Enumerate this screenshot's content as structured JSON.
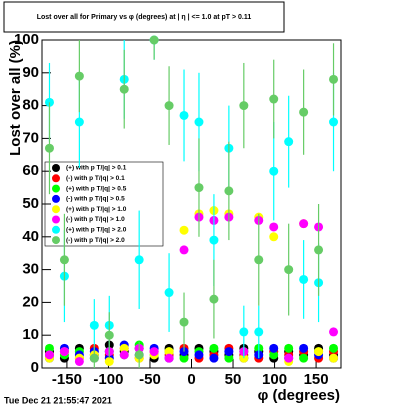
{
  "chart_data": {
    "type": "scatter",
    "title": "Lost over all for Primary vs φ (degrees) at | η | <= 1.0 at pT > 0.11",
    "x_label": "φ (degrees)",
    "y_label": "Lost over all (%)",
    "timestamp": "Tue Dec 21 21:55:47 2021",
    "x": [
      -171,
      -153,
      -135,
      -117,
      -99,
      -81,
      -63,
      -45,
      -27,
      -9,
      9,
      27,
      45,
      63,
      81,
      99,
      117,
      135,
      153,
      171
    ],
    "xlim": [
      -180,
      180
    ],
    "xticks": [
      -150,
      -100,
      -50,
      0,
      50,
      100,
      150
    ],
    "ylim": [
      0,
      100
    ],
    "yticks": [
      0,
      10,
      20,
      30,
      40,
      50,
      60,
      70,
      80,
      90,
      100
    ],
    "series": [
      {
        "name": "(+) with p T/|q| > 0.1",
        "color": "#000000",
        "values": [
          5,
          3,
          6,
          4,
          7,
          5,
          6,
          3,
          6,
          4,
          6,
          5,
          4,
          6,
          5,
          3,
          5,
          4,
          6,
          4
        ]
      },
      {
        "name": "(-) with p T/|q| > 0.1",
        "color": "#ff0000",
        "values": [
          4,
          5,
          3,
          6,
          4,
          6,
          3,
          5,
          4,
          6,
          3,
          4,
          6,
          4,
          3,
          5,
          4,
          5,
          3,
          5
        ]
      },
      {
        "name": "(+) with p T/|q| > 0.5",
        "color": "#00ff00",
        "values": [
          6,
          4,
          5,
          3,
          5,
          4,
          7,
          4,
          5,
          3,
          5,
          6,
          3,
          5,
          6,
          4,
          6,
          3,
          5,
          6
        ]
      },
      {
        "name": "(-) with p T/|q| > 0.5",
        "color": "#0000ff",
        "values": [
          3,
          6,
          4,
          5,
          3,
          7,
          4,
          6,
          3,
          5,
          4,
          3,
          5,
          3,
          4,
          6,
          3,
          6,
          4,
          3
        ]
      },
      {
        "name": "(+) with p T/|q| > 1.0",
        "color": "#ffff00",
        "values": [
          3,
          5,
          3,
          4,
          2,
          6,
          3,
          4,
          5,
          42,
          47,
          48,
          47,
          3,
          46,
          40,
          2,
          44,
          5,
          3
        ]
      },
      {
        "name": "(-) with p T/|q| > 1.0",
        "color": "#ff00ff",
        "values": [
          4,
          5,
          2,
          3,
          5,
          4,
          6,
          5,
          3,
          36,
          46,
          45,
          46,
          5,
          45,
          43,
          3,
          44,
          43,
          11
        ]
      },
      {
        "name": "(+) with p T/|q| > 2.0",
        "color": "#00ffff",
        "values": [
          81,
          28,
          75,
          13,
          13,
          88,
          33,
          100,
          23,
          77,
          75,
          39,
          67,
          11,
          11,
          60,
          69,
          27,
          26,
          75
        ],
        "errors": [
          12,
          14,
          14,
          8,
          9,
          12,
          15,
          6,
          12,
          14,
          15,
          14,
          13,
          8,
          8,
          15,
          14,
          12,
          12,
          15
        ]
      },
      {
        "name": "(-) with p T/|q| > 2.0",
        "color": "#66cc66",
        "values": [
          67,
          33,
          89,
          3,
          10,
          85,
          4,
          100,
          80,
          14,
          55,
          21,
          54,
          80,
          33,
          82,
          30,
          78,
          36,
          88
        ],
        "errors": [
          14,
          14,
          11,
          4,
          7,
          12,
          4,
          6,
          12,
          9,
          15,
          12,
          15,
          13,
          14,
          12,
          14,
          13,
          14,
          11
        ]
      }
    ]
  }
}
